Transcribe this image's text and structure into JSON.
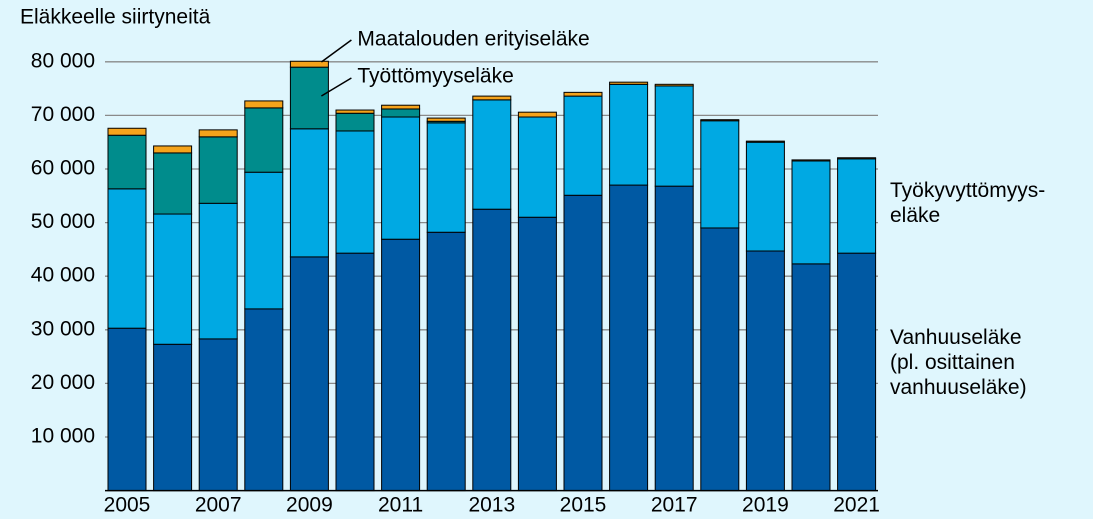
{
  "chart_data": {
    "type": "stacked_bar",
    "ylabel": "Eläkkeelle siirtyneitä",
    "categories": [
      "2005",
      null,
      "2007",
      null,
      "2009",
      null,
      "2011",
      null,
      "2013",
      null,
      "2015",
      null,
      "2017",
      null,
      "2019",
      null,
      "2021"
    ],
    "series": [
      {
        "name": "Vanhuuseläke\n(pl. osittainen\nvanhuuseläke)",
        "color": "#0059a3",
        "values": [
          30300,
          27300,
          28300,
          33900,
          43600,
          44300,
          46900,
          48200,
          52500,
          51000,
          55100,
          57000,
          56800,
          49000,
          44700,
          42300,
          44300
        ]
      },
      {
        "name": "Työkyvyttömyys-\neläke",
        "color": "#00a9e3",
        "values": [
          26000,
          24300,
          25300,
          25500,
          23900,
          22800,
          22800,
          20400,
          20400,
          18700,
          18500,
          18800,
          18700,
          20000,
          20300,
          19200,
          17600
        ]
      },
      {
        "name": "Työttömyyseläke",
        "color": "#008c8c",
        "values": [
          10000,
          11400,
          12400,
          12000,
          11500,
          3300,
          1500,
          300,
          0,
          0,
          0,
          0,
          0,
          0,
          0,
          0,
          0
        ]
      },
      {
        "name": "Maatalouden erityiseläke",
        "color": "#f5a31b",
        "values": [
          1300,
          1300,
          1300,
          1300,
          1100,
          600,
          700,
          600,
          700,
          900,
          700,
          400,
          300,
          200,
          200,
          200,
          200
        ]
      }
    ],
    "ylim": [
      0,
      85000
    ],
    "yticks": [
      {
        "value": 10000,
        "label": "10 000"
      },
      {
        "value": 20000,
        "label": "20 000"
      },
      {
        "value": 30000,
        "label": "30 000"
      },
      {
        "value": 40000,
        "label": "40 000"
      },
      {
        "value": 50000,
        "label": "50 000"
      },
      {
        "value": 60000,
        "label": "60 000"
      },
      {
        "value": 70000,
        "label": "70 000"
      },
      {
        "value": 80000,
        "label": "80 000"
      }
    ],
    "grid": true
  }
}
